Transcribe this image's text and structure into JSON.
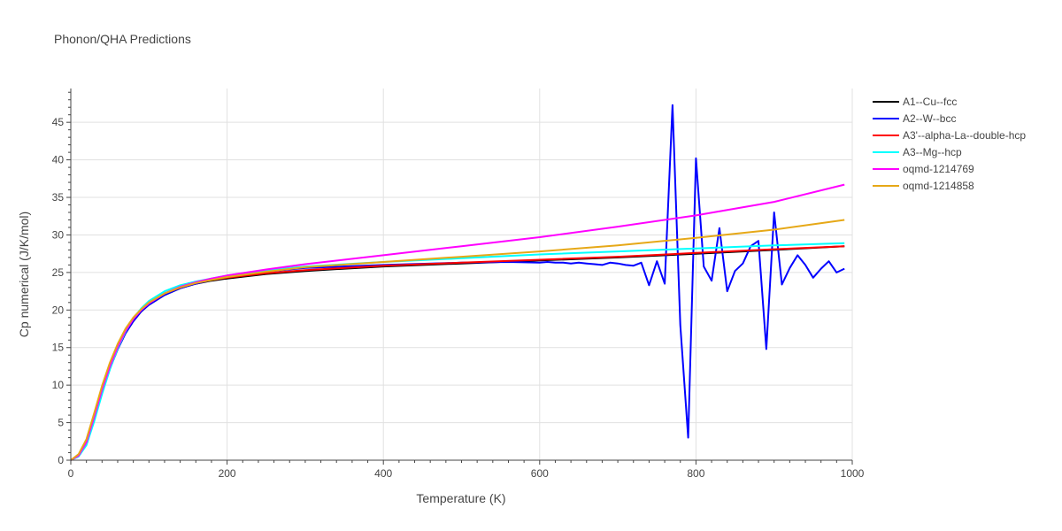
{
  "chart_data": {
    "type": "line",
    "title": "Phonon/QHA Predictions",
    "xlabel": "Temperature (K)",
    "ylabel": "Cp numerical (J/K/mol)",
    "xlim": [
      0,
      1000
    ],
    "ylim": [
      0,
      49.5
    ],
    "x_ticks": [
      0,
      200,
      400,
      600,
      800,
      1000
    ],
    "y_ticks": [
      0,
      5,
      10,
      15,
      20,
      25,
      30,
      35,
      40,
      45
    ],
    "grid": true,
    "legend_position": "right",
    "series": [
      {
        "name": "A1--Cu--fcc",
        "color": "#000000",
        "points": [
          [
            0,
            0
          ],
          [
            10,
            0.6
          ],
          [
            20,
            2.3
          ],
          [
            30,
            5.6
          ],
          [
            40,
            9.1
          ],
          [
            50,
            12.2
          ],
          [
            60,
            14.8
          ],
          [
            70,
            16.9
          ],
          [
            80,
            18.5
          ],
          [
            90,
            19.8
          ],
          [
            100,
            20.7
          ],
          [
            120,
            22.0
          ],
          [
            140,
            22.9
          ],
          [
            160,
            23.5
          ],
          [
            180,
            23.9
          ],
          [
            200,
            24.2
          ],
          [
            250,
            24.8
          ],
          [
            300,
            25.2
          ],
          [
            400,
            25.8
          ],
          [
            500,
            26.2
          ],
          [
            600,
            26.6
          ],
          [
            700,
            27.0
          ],
          [
            800,
            27.5
          ],
          [
            900,
            28.0
          ],
          [
            990,
            28.5
          ]
        ]
      },
      {
        "name": "A2--W--bcc",
        "color": "#0000ff",
        "points": [
          [
            0,
            0
          ],
          [
            10,
            0.6
          ],
          [
            20,
            2.3
          ],
          [
            30,
            5.6
          ],
          [
            40,
            9.1
          ],
          [
            50,
            12.2
          ],
          [
            60,
            14.8
          ],
          [
            70,
            16.9
          ],
          [
            80,
            18.5
          ],
          [
            90,
            19.8
          ],
          [
            100,
            20.7
          ],
          [
            120,
            22.0
          ],
          [
            140,
            22.9
          ],
          [
            160,
            23.5
          ],
          [
            180,
            24.0
          ],
          [
            200,
            24.4
          ],
          [
            250,
            25.1
          ],
          [
            300,
            25.6
          ],
          [
            400,
            26.0
          ],
          [
            500,
            26.3
          ],
          [
            560,
            26.4
          ],
          [
            600,
            26.3
          ],
          [
            610,
            26.4
          ],
          [
            620,
            26.3
          ],
          [
            630,
            26.3
          ],
          [
            640,
            26.2
          ],
          [
            650,
            26.3
          ],
          [
            660,
            26.2
          ],
          [
            670,
            26.1
          ],
          [
            680,
            26.0
          ],
          [
            690,
            26.3
          ],
          [
            700,
            26.2
          ],
          [
            710,
            26.0
          ],
          [
            720,
            25.9
          ],
          [
            730,
            26.3
          ],
          [
            740,
            23.3
          ],
          [
            750,
            26.5
          ],
          [
            760,
            23.5
          ],
          [
            770,
            47.3
          ],
          [
            780,
            18.0
          ],
          [
            790,
            3.0
          ],
          [
            800,
            40.2
          ],
          [
            810,
            25.8
          ],
          [
            820,
            23.9
          ],
          [
            830,
            30.9
          ],
          [
            840,
            22.5
          ],
          [
            850,
            25.2
          ],
          [
            860,
            26.2
          ],
          [
            870,
            28.5
          ],
          [
            880,
            29.2
          ],
          [
            890,
            14.8
          ],
          [
            900,
            33.0
          ],
          [
            910,
            23.4
          ],
          [
            920,
            25.6
          ],
          [
            930,
            27.3
          ],
          [
            940,
            26.0
          ],
          [
            950,
            24.3
          ],
          [
            960,
            25.5
          ],
          [
            970,
            26.5
          ],
          [
            980,
            25.0
          ],
          [
            990,
            25.5
          ]
        ]
      },
      {
        "name": "A3'--alpha-La--double-hcp",
        "color": "#ff0000",
        "points": [
          [
            0,
            0
          ],
          [
            10,
            0.7
          ],
          [
            20,
            2.5
          ],
          [
            30,
            5.9
          ],
          [
            40,
            9.5
          ],
          [
            50,
            12.6
          ],
          [
            60,
            15.2
          ],
          [
            70,
            17.2
          ],
          [
            80,
            18.8
          ],
          [
            90,
            20.0
          ],
          [
            100,
            20.9
          ],
          [
            120,
            22.2
          ],
          [
            140,
            23.0
          ],
          [
            160,
            23.6
          ],
          [
            180,
            24.0
          ],
          [
            200,
            24.3
          ],
          [
            250,
            24.9
          ],
          [
            300,
            25.3
          ],
          [
            400,
            25.9
          ],
          [
            500,
            26.3
          ],
          [
            600,
            26.7
          ],
          [
            700,
            27.1
          ],
          [
            800,
            27.6
          ],
          [
            900,
            28.1
          ],
          [
            990,
            28.5
          ]
        ]
      },
      {
        "name": "A3--Mg--hcp",
        "color": "#00ffff",
        "points": [
          [
            0,
            0
          ],
          [
            10,
            0.5
          ],
          [
            20,
            2.0
          ],
          [
            30,
            5.2
          ],
          [
            40,
            8.8
          ],
          [
            50,
            12.1
          ],
          [
            60,
            14.9
          ],
          [
            70,
            17.1
          ],
          [
            80,
            18.9
          ],
          [
            90,
            20.2
          ],
          [
            100,
            21.2
          ],
          [
            120,
            22.5
          ],
          [
            140,
            23.3
          ],
          [
            160,
            23.8
          ],
          [
            180,
            24.2
          ],
          [
            200,
            24.6
          ],
          [
            250,
            25.3
          ],
          [
            300,
            25.8
          ],
          [
            400,
            26.4
          ],
          [
            500,
            26.9
          ],
          [
            600,
            27.4
          ],
          [
            700,
            27.8
          ],
          [
            800,
            28.2
          ],
          [
            900,
            28.6
          ],
          [
            990,
            28.9
          ]
        ]
      },
      {
        "name": "oqmd-1214769",
        "color": "#ff00ff",
        "points": [
          [
            0,
            0
          ],
          [
            10,
            0.6
          ],
          [
            20,
            2.4
          ],
          [
            30,
            5.8
          ],
          [
            40,
            9.4
          ],
          [
            50,
            12.5
          ],
          [
            60,
            15.1
          ],
          [
            70,
            17.2
          ],
          [
            80,
            18.8
          ],
          [
            90,
            20.0
          ],
          [
            100,
            20.9
          ],
          [
            120,
            22.2
          ],
          [
            140,
            23.1
          ],
          [
            160,
            23.7
          ],
          [
            180,
            24.2
          ],
          [
            200,
            24.6
          ],
          [
            250,
            25.4
          ],
          [
            300,
            26.1
          ],
          [
            400,
            27.3
          ],
          [
            500,
            28.5
          ],
          [
            600,
            29.7
          ],
          [
            700,
            31.1
          ],
          [
            800,
            32.6
          ],
          [
            900,
            34.4
          ],
          [
            990,
            36.7
          ]
        ]
      },
      {
        "name": "oqmd-1214858",
        "color": "#e6a817",
        "points": [
          [
            0,
            0
          ],
          [
            10,
            0.8
          ],
          [
            20,
            2.8
          ],
          [
            30,
            6.3
          ],
          [
            40,
            9.9
          ],
          [
            50,
            13.0
          ],
          [
            60,
            15.5
          ],
          [
            70,
            17.5
          ],
          [
            80,
            19.0
          ],
          [
            90,
            20.1
          ],
          [
            100,
            21.0
          ],
          [
            120,
            22.2
          ],
          [
            140,
            23.0
          ],
          [
            160,
            23.6
          ],
          [
            180,
            24.0
          ],
          [
            200,
            24.4
          ],
          [
            250,
            25.1
          ],
          [
            300,
            25.7
          ],
          [
            400,
            26.4
          ],
          [
            500,
            27.1
          ],
          [
            600,
            27.8
          ],
          [
            700,
            28.6
          ],
          [
            800,
            29.6
          ],
          [
            900,
            30.7
          ],
          [
            990,
            32.0
          ]
        ]
      }
    ]
  }
}
